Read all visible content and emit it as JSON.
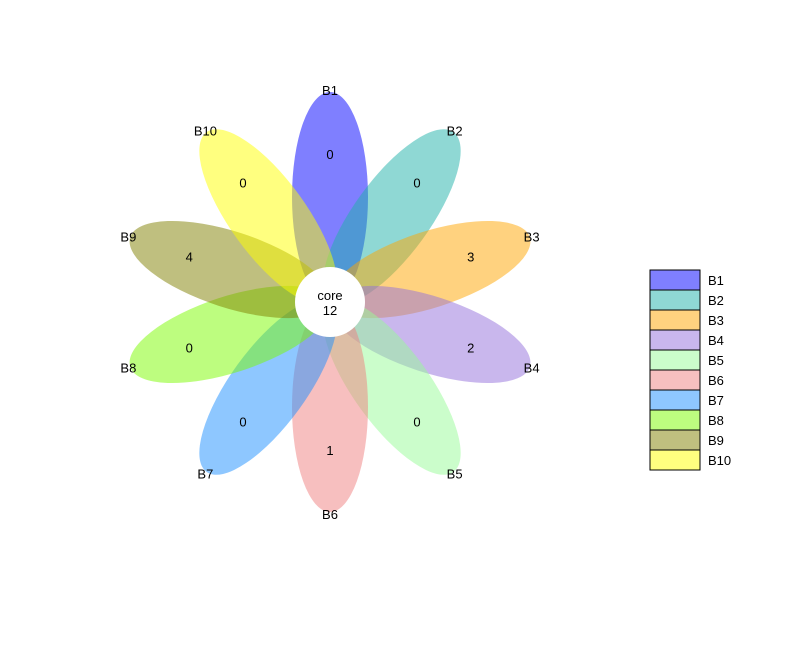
{
  "chart_data": {
    "type": "flower-venn",
    "core": {
      "label": "core",
      "value": 12
    },
    "petals": [
      {
        "name": "B1",
        "value": 0,
        "color": "#0000FF"
      },
      {
        "name": "B2",
        "value": 0,
        "color": "#20B2AA"
      },
      {
        "name": "B3",
        "value": 3,
        "color": "#FFA500"
      },
      {
        "name": "B4",
        "value": 2,
        "color": "#9370DB"
      },
      {
        "name": "B5",
        "value": 0,
        "color": "#98FB98"
      },
      {
        "name": "B6",
        "value": 1,
        "color": "#F08080"
      },
      {
        "name": "B7",
        "value": 0,
        "color": "#1E90FF"
      },
      {
        "name": "B8",
        "value": 0,
        "color": "#7CFC00"
      },
      {
        "name": "B9",
        "value": 4,
        "color": "#808000"
      },
      {
        "name": "B10",
        "value": 0,
        "color": "#FFFF00"
      }
    ],
    "legend": [
      "B1",
      "B2",
      "B3",
      "B4",
      "B5",
      "B6",
      "B7",
      "B8",
      "B9",
      "B10"
    ],
    "legend_placement": "right",
    "petal_opacity": 0.5
  }
}
